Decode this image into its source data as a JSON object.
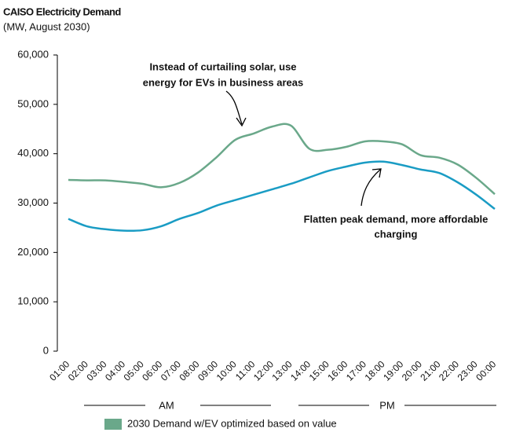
{
  "chart_data": {
    "type": "line",
    "title": "CAISO Electricity Demand",
    "subtitle": "(MW, August 2030)",
    "categories": [
      "01:00",
      "02:00",
      "03:00",
      "04:00",
      "05:00",
      "06:00",
      "07:00",
      "08:00",
      "09:00",
      "10:00",
      "11:00",
      "12:00",
      "13:00",
      "14:00",
      "15:00",
      "16:00",
      "17:00",
      "18:00",
      "19:00",
      "20:00",
      "21:00",
      "22:00",
      "23:00",
      "00:00"
    ],
    "series": [
      {
        "name": "2030 Demand w/EV optimized based on value",
        "color": "#6aa88a",
        "values": [
          34700,
          34600,
          34600,
          34300,
          33900,
          33200,
          34100,
          36200,
          39300,
          42800,
          44100,
          45500,
          45700,
          41000,
          40800,
          41400,
          42500,
          42500,
          41900,
          39700,
          39200,
          37800,
          35100,
          31800
        ]
      },
      {
        "color": "#1a9cc4",
        "values": [
          26800,
          25300,
          24700,
          24400,
          24500,
          25300,
          26800,
          28000,
          29500,
          30600,
          31700,
          32800,
          33900,
          35200,
          36500,
          37400,
          38200,
          38400,
          37700,
          36800,
          36100,
          34200,
          31700,
          28800
        ]
      }
    ],
    "ylim": [
      0,
      60000
    ],
    "yticks": [
      0,
      {
        "value": 10000,
        "label": "10,000"
      },
      {
        "value": 20000,
        "label": "20,000"
      },
      {
        "value": 30000,
        "label": "30,000"
      },
      {
        "value": 40000,
        "label": "40,000"
      },
      {
        "value": 50000,
        "label": "50,000"
      },
      {
        "value": 60000,
        "label": "60,000"
      }
    ],
    "x_groups": [
      "AM",
      "PM"
    ],
    "annotations": [
      "Instead of curtailing solar, use",
      "energy for EVs in business areas",
      "Flatten peak demand, more affordable",
      "charging"
    ]
  }
}
